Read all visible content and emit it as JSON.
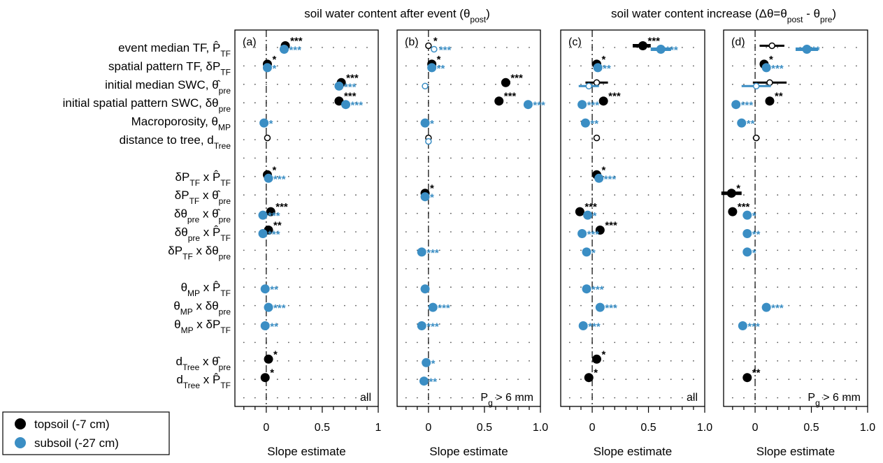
{
  "colors": {
    "topsoil": "#000000",
    "subsoil": "#3b8ec4"
  },
  "headers": {
    "left": {
      "main": "soil water content after event (θ",
      "sub": "post",
      "end": ")"
    },
    "right": {
      "main": "soil water content increase (Δθ=θ",
      "sub1": "post",
      "mid": " - θ",
      "sub2": "pre",
      "end": ")"
    }
  },
  "row_labels": [
    {
      "row": 0,
      "parts": [
        [
          "event median TF, ",
          ""
        ],
        [
          "P̂",
          ""
        ],
        [
          "TF",
          "sub"
        ]
      ]
    },
    {
      "row": 1,
      "parts": [
        [
          "spatial pattern TF, δP",
          ""
        ],
        [
          "TF",
          "sub"
        ]
      ]
    },
    {
      "row": 2,
      "parts": [
        [
          "initial median SWC, ",
          ""
        ],
        [
          "θ̂",
          ""
        ],
        [
          "pre",
          "sub"
        ]
      ]
    },
    {
      "row": 3,
      "parts": [
        [
          "initial spatial pattern SWC, δθ",
          ""
        ],
        [
          "pre",
          "sub"
        ]
      ]
    },
    {
      "row": 4,
      "parts": [
        [
          "Macroporosity, θ",
          ""
        ],
        [
          "MP",
          "sub"
        ]
      ]
    },
    {
      "row": 5,
      "parts": [
        [
          "distance to tree, d",
          ""
        ],
        [
          "Tree",
          "sub"
        ]
      ]
    },
    {
      "row": 7,
      "parts": [
        [
          "δP",
          ""
        ],
        [
          "TF",
          "sub"
        ],
        [
          " x P̂",
          ""
        ],
        [
          "TF",
          "sub"
        ]
      ]
    },
    {
      "row": 8,
      "parts": [
        [
          "δP",
          ""
        ],
        [
          "TF",
          "sub"
        ],
        [
          " x θ̂",
          ""
        ],
        [
          "pre",
          "sub"
        ]
      ]
    },
    {
      "row": 9,
      "parts": [
        [
          "δθ",
          ""
        ],
        [
          "pre",
          "sub"
        ],
        [
          " x θ̂",
          ""
        ],
        [
          "pre",
          "sub"
        ]
      ]
    },
    {
      "row": 10,
      "parts": [
        [
          "δθ",
          ""
        ],
        [
          "pre",
          "sub"
        ],
        [
          " x P̂",
          ""
        ],
        [
          "TF",
          "sub"
        ]
      ]
    },
    {
      "row": 11,
      "parts": [
        [
          "δP",
          ""
        ],
        [
          "TF",
          "sub"
        ],
        [
          " x δθ",
          ""
        ],
        [
          "pre",
          "sub"
        ]
      ]
    },
    {
      "row": 13,
      "parts": [
        [
          "θ",
          ""
        ],
        [
          "MP",
          "sub"
        ],
        [
          " x P̂",
          ""
        ],
        [
          "TF",
          "sub"
        ]
      ]
    },
    {
      "row": 14,
      "parts": [
        [
          "θ",
          ""
        ],
        [
          "MP",
          "sub"
        ],
        [
          " x δθ",
          ""
        ],
        [
          "pre",
          "sub"
        ]
      ]
    },
    {
      "row": 15,
      "parts": [
        [
          "θ",
          ""
        ],
        [
          "MP",
          "sub"
        ],
        [
          " x δP",
          ""
        ],
        [
          "TF",
          "sub"
        ]
      ]
    },
    {
      "row": 17,
      "parts": [
        [
          "d",
          ""
        ],
        [
          "Tree",
          "sub"
        ],
        [
          " x θ̂",
          ""
        ],
        [
          "pre",
          "sub"
        ]
      ]
    },
    {
      "row": 18,
      "parts": [
        [
          "d",
          ""
        ],
        [
          "Tree",
          "sub"
        ],
        [
          " x P̂",
          ""
        ],
        [
          "TF",
          "sub"
        ]
      ]
    }
  ],
  "legend": [
    {
      "name": "topsoil (-7 cm)",
      "color": "#000000"
    },
    {
      "name": "subsoil (-27 cm)",
      "color": "#3b8ec4"
    }
  ],
  "chart_data": [
    {
      "type": "scatter",
      "panel": "(a)",
      "subset": "all",
      "subset_parts": [
        [
          "all",
          ""
        ]
      ],
      "xlabel": "Slope estimate",
      "xlim": [
        -0.28,
        1.0
      ],
      "xticks": [
        0,
        0.5,
        1
      ],
      "xtick_labels": [
        "0",
        "0.5",
        "1"
      ],
      "grid": true,
      "points": [
        {
          "row": 0,
          "series": "topsoil",
          "x": 0.17,
          "filled": true,
          "sig": "***"
        },
        {
          "row": 0,
          "series": "subsoil",
          "x": 0.16,
          "filled": true,
          "sig": "***"
        },
        {
          "row": 1,
          "series": "topsoil",
          "x": 0.01,
          "filled": true,
          "sig": "*"
        },
        {
          "row": 1,
          "series": "subsoil",
          "x": 0.01,
          "filled": true,
          "sig": "*"
        },
        {
          "row": 2,
          "series": "topsoil",
          "x": 0.67,
          "filled": true,
          "sig": "***"
        },
        {
          "row": 2,
          "series": "subsoil",
          "x": 0.65,
          "filled": true,
          "sig": "***"
        },
        {
          "row": 3,
          "series": "topsoil",
          "x": 0.65,
          "filled": true,
          "sig": "***"
        },
        {
          "row": 3,
          "series": "subsoil",
          "x": 0.71,
          "filled": true,
          "sig": "***"
        },
        {
          "row": 4,
          "series": "subsoil",
          "x": -0.02,
          "filled": true,
          "sig": "*"
        },
        {
          "row": 5,
          "series": "topsoil",
          "x": 0.01,
          "filled": false,
          "sig": ""
        },
        {
          "row": 7,
          "series": "topsoil",
          "x": 0.01,
          "filled": true,
          "sig": "*"
        },
        {
          "row": 7,
          "series": "subsoil",
          "x": 0.02,
          "filled": true,
          "sig": "***"
        },
        {
          "row": 9,
          "series": "topsoil",
          "x": 0.04,
          "filled": true,
          "sig": "***"
        },
        {
          "row": 9,
          "series": "subsoil",
          "x": -0.03,
          "filled": true,
          "sig": "***"
        },
        {
          "row": 10,
          "series": "topsoil",
          "x": 0.02,
          "filled": true,
          "sig": "**"
        },
        {
          "row": 10,
          "series": "subsoil",
          "x": -0.03,
          "filled": true,
          "sig": "***"
        },
        {
          "row": 13,
          "series": "subsoil",
          "x": -0.01,
          "filled": true,
          "sig": "**"
        },
        {
          "row": 14,
          "series": "subsoil",
          "x": 0.02,
          "filled": true,
          "sig": "***"
        },
        {
          "row": 15,
          "series": "subsoil",
          "x": -0.01,
          "filled": true,
          "sig": "**"
        },
        {
          "row": 17,
          "series": "topsoil",
          "x": 0.02,
          "filled": true,
          "sig": "*"
        },
        {
          "row": 18,
          "series": "topsoil",
          "x": -0.01,
          "filled": true,
          "sig": "*"
        }
      ]
    },
    {
      "type": "scatter",
      "panel": "(b)",
      "subset": "Pg > 6 mm",
      "subset_parts": [
        [
          "P",
          ""
        ],
        [
          "g",
          "sub"
        ],
        [
          " > 6 mm",
          ""
        ]
      ],
      "xlabel": "Slope estimate",
      "xlim": [
        -0.28,
        1.0
      ],
      "xticks": [
        0,
        0.5,
        1.0
      ],
      "xtick_labels": [
        "0",
        "0.5",
        "1.0"
      ],
      "grid": true,
      "points": [
        {
          "row": 0,
          "series": "topsoil",
          "x": 0.0,
          "filled": false,
          "sig": "*"
        },
        {
          "row": 0,
          "series": "subsoil",
          "x": 0.05,
          "filled": false,
          "sig": "***"
        },
        {
          "row": 1,
          "series": "topsoil",
          "x": 0.03,
          "filled": true,
          "sig": "*"
        },
        {
          "row": 1,
          "series": "subsoil",
          "x": 0.03,
          "filled": true,
          "sig": "**"
        },
        {
          "row": 2,
          "series": "topsoil",
          "x": 0.69,
          "filled": true,
          "sig": "***",
          "ci": [
            0.66,
            0.73
          ]
        },
        {
          "row": 2,
          "series": "subsoil",
          "x": -0.03,
          "filled": false,
          "sig": ""
        },
        {
          "row": 3,
          "series": "topsoil",
          "x": 0.63,
          "filled": true,
          "sig": "***"
        },
        {
          "row": 3,
          "series": "subsoil",
          "x": 0.89,
          "filled": true,
          "sig": "***"
        },
        {
          "row": 4,
          "series": "subsoil",
          "x": -0.03,
          "filled": true,
          "sig": "*"
        },
        {
          "row": 5,
          "series": "topsoil",
          "x": 0.0,
          "filled": false,
          "sig": ""
        },
        {
          "row": 5,
          "series": "subsoil",
          "x": 0.0,
          "filled": false,
          "sig": ""
        },
        {
          "row": 8,
          "series": "topsoil",
          "x": -0.03,
          "filled": true,
          "sig": "*"
        },
        {
          "row": 8,
          "series": "subsoil",
          "x": -0.03,
          "filled": true,
          "sig": "*"
        },
        {
          "row": 11,
          "series": "subsoil",
          "x": -0.06,
          "filled": true,
          "sig": "***"
        },
        {
          "row": 13,
          "series": "subsoil",
          "x": -0.03,
          "filled": true,
          "sig": ""
        },
        {
          "row": 14,
          "series": "subsoil",
          "x": 0.04,
          "filled": true,
          "sig": "***"
        },
        {
          "row": 15,
          "series": "subsoil",
          "x": -0.06,
          "filled": true,
          "sig": "***"
        },
        {
          "row": 17,
          "series": "subsoil",
          "x": -0.02,
          "filled": true,
          "sig": "*"
        },
        {
          "row": 18,
          "series": "subsoil",
          "x": -0.04,
          "filled": true,
          "sig": "**"
        }
      ]
    },
    {
      "type": "scatter",
      "panel": "(c)",
      "subset": "all",
      "subset_parts": [
        [
          "all",
          ""
        ]
      ],
      "xlabel": "Slope estimate",
      "xlim": [
        -0.28,
        1.0
      ],
      "xticks": [
        0,
        0.5,
        1.0
      ],
      "xtick_labels": [
        "0",
        "0.5",
        "1.0"
      ],
      "grid": true,
      "points": [
        {
          "row": 0,
          "series": "topsoil",
          "x": 0.45,
          "filled": true,
          "sig": "***",
          "ci": [
            0.36,
            0.52
          ]
        },
        {
          "row": 0,
          "series": "subsoil",
          "x": 0.61,
          "filled": true,
          "sig": "***",
          "ci": [
            0.52,
            0.7
          ]
        },
        {
          "row": 1,
          "series": "topsoil",
          "x": 0.04,
          "filled": true,
          "sig": "*"
        },
        {
          "row": 1,
          "series": "subsoil",
          "x": 0.05,
          "filled": true,
          "sig": "**"
        },
        {
          "row": 2,
          "series": "topsoil",
          "x": 0.04,
          "filled": false,
          "sig": "",
          "ci": [
            -0.06,
            0.14
          ]
        },
        {
          "row": 2,
          "series": "subsoil",
          "x": -0.03,
          "filled": false,
          "sig": "",
          "ci": [
            -0.12,
            0.06
          ]
        },
        {
          "row": 3,
          "series": "topsoil",
          "x": 0.1,
          "filled": true,
          "sig": "***"
        },
        {
          "row": 3,
          "series": "subsoil",
          "x": -0.09,
          "filled": true,
          "sig": "***"
        },
        {
          "row": 4,
          "series": "subsoil",
          "x": -0.06,
          "filled": true,
          "sig": "**"
        },
        {
          "row": 5,
          "series": "topsoil",
          "x": 0.04,
          "filled": false,
          "sig": ""
        },
        {
          "row": 7,
          "series": "topsoil",
          "x": 0.04,
          "filled": true,
          "sig": "*"
        },
        {
          "row": 7,
          "series": "subsoil",
          "x": 0.06,
          "filled": true,
          "sig": "***"
        },
        {
          "row": 9,
          "series": "topsoil",
          "x": -0.11,
          "filled": true,
          "sig": "***"
        },
        {
          "row": 9,
          "series": "subsoil",
          "x": -0.04,
          "filled": true,
          "sig": "*"
        },
        {
          "row": 10,
          "series": "topsoil",
          "x": 0.07,
          "filled": true,
          "sig": "***"
        },
        {
          "row": 10,
          "series": "subsoil",
          "x": -0.09,
          "filled": true,
          "sig": "***"
        },
        {
          "row": 11,
          "series": "subsoil",
          "x": -0.05,
          "filled": true,
          "sig": "*"
        },
        {
          "row": 13,
          "series": "subsoil",
          "x": -0.05,
          "filled": true,
          "sig": "***"
        },
        {
          "row": 14,
          "series": "subsoil",
          "x": 0.07,
          "filled": true,
          "sig": "***"
        },
        {
          "row": 15,
          "series": "subsoil",
          "x": -0.08,
          "filled": true,
          "sig": "***"
        },
        {
          "row": 17,
          "series": "topsoil",
          "x": 0.04,
          "filled": true,
          "sig": "*"
        },
        {
          "row": 18,
          "series": "topsoil",
          "x": -0.03,
          "filled": true,
          "sig": "*"
        }
      ]
    },
    {
      "type": "scatter",
      "panel": "(d)",
      "subset": "Pg > 6 mm",
      "subset_parts": [
        [
          "P",
          ""
        ],
        [
          "g",
          "sub"
        ],
        [
          " > 6 mm",
          ""
        ]
      ],
      "xlabel": "Slope estimate",
      "xlim": [
        -0.28,
        1.0
      ],
      "xticks": [
        0,
        0.5,
        1.0
      ],
      "xtick_labels": [
        "0",
        "0.5",
        "1.0"
      ],
      "grid": true,
      "points": [
        {
          "row": 0,
          "series": "topsoil",
          "x": 0.15,
          "filled": false,
          "sig": "",
          "ci": [
            0.04,
            0.26
          ]
        },
        {
          "row": 0,
          "series": "subsoil",
          "x": 0.46,
          "filled": true,
          "sig": "**",
          "ci": [
            0.36,
            0.56
          ]
        },
        {
          "row": 1,
          "series": "topsoil",
          "x": 0.08,
          "filled": true,
          "sig": "*"
        },
        {
          "row": 1,
          "series": "subsoil",
          "x": 0.1,
          "filled": true,
          "sig": "***"
        },
        {
          "row": 2,
          "series": "topsoil",
          "x": 0.13,
          "filled": false,
          "sig": "",
          "ci": [
            -0.02,
            0.28
          ]
        },
        {
          "row": 2,
          "series": "subsoil",
          "x": 0.01,
          "filled": false,
          "sig": "",
          "ci": [
            -0.12,
            0.14
          ]
        },
        {
          "row": 3,
          "series": "topsoil",
          "x": 0.13,
          "filled": true,
          "sig": "**"
        },
        {
          "row": 3,
          "series": "subsoil",
          "x": -0.17,
          "filled": true,
          "sig": "***"
        },
        {
          "row": 4,
          "series": "subsoil",
          "x": -0.12,
          "filled": true,
          "sig": "**"
        },
        {
          "row": 5,
          "series": "topsoil",
          "x": 0.01,
          "filled": false,
          "sig": "",
          "ci": [
            -0.02,
            0.04
          ]
        },
        {
          "row": 8,
          "series": "topsoil",
          "x": -0.21,
          "filled": true,
          "sig": "*",
          "ci": [
            -0.3,
            -0.12
          ]
        },
        {
          "row": 9,
          "series": "topsoil",
          "x": -0.2,
          "filled": true,
          "sig": "***"
        },
        {
          "row": 9,
          "series": "subsoil",
          "x": -0.07,
          "filled": true,
          "sig": "*"
        },
        {
          "row": 10,
          "series": "subsoil",
          "x": -0.07,
          "filled": true,
          "sig": "**"
        },
        {
          "row": 11,
          "series": "subsoil",
          "x": -0.07,
          "filled": true,
          "sig": "*"
        },
        {
          "row": 14,
          "series": "subsoil",
          "x": 0.1,
          "filled": true,
          "sig": "***"
        },
        {
          "row": 15,
          "series": "subsoil",
          "x": -0.11,
          "filled": true,
          "sig": "***"
        },
        {
          "row": 18,
          "series": "topsoil",
          "x": -0.07,
          "filled": true,
          "sig": "**"
        }
      ]
    }
  ]
}
